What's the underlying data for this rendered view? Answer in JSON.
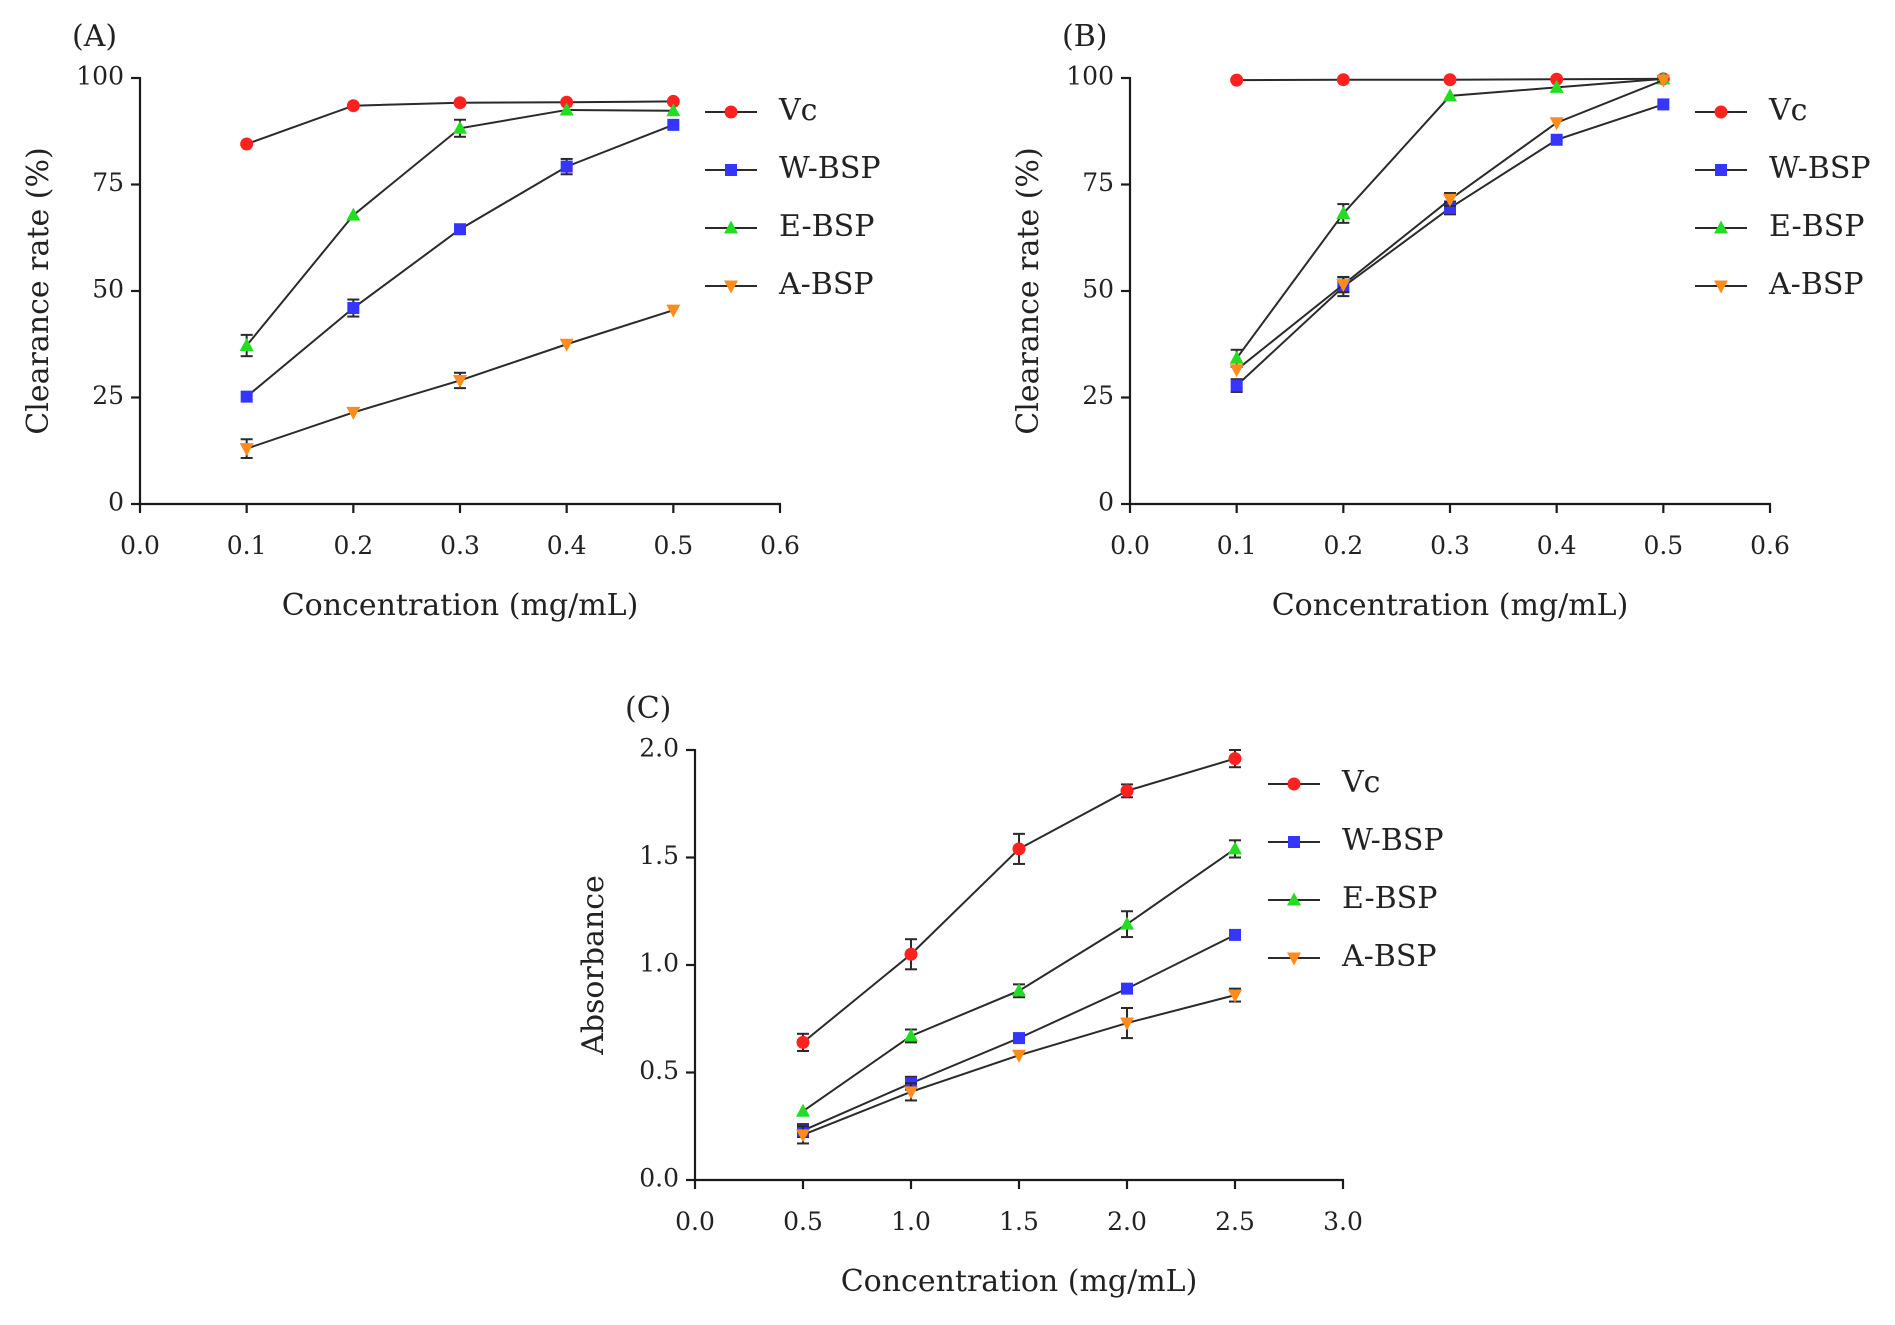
{
  "chart_data": [
    {
      "type": "line",
      "panel_label": "(A)",
      "xlabel": "Concentration (mg/mL)",
      "ylabel": "Clearance rate (%)",
      "xlim": [
        0.0,
        0.6
      ],
      "ylim": [
        0,
        100
      ],
      "xticks": [
        0.0,
        0.1,
        0.2,
        0.3,
        0.4,
        0.5,
        0.6
      ],
      "xtick_labels": [
        "0.0",
        "0.1",
        "0.2",
        "0.3",
        "0.4",
        "0.5",
        "0.6"
      ],
      "yticks": [
        0,
        25,
        50,
        75,
        100
      ],
      "ytick_labels": [
        "0",
        "25",
        "50",
        "75",
        "100"
      ],
      "legend_position": "right",
      "x": [
        0.1,
        0.2,
        0.3,
        0.4,
        0.5
      ],
      "series": [
        {
          "name": "Vc",
          "color": "#ff2020",
          "marker": "circle",
          "values": [
            84.5,
            93.5,
            94.2,
            94.3,
            94.5
          ],
          "errors": [
            0.6,
            0.6,
            0.6,
            0.6,
            0.6
          ]
        },
        {
          "name": "W-BSP",
          "color": "#3535ff",
          "marker": "square",
          "values": [
            25.2,
            46.0,
            64.5,
            79.2,
            89.0
          ],
          "errors": [
            0.6,
            2.0,
            0.8,
            1.8,
            1.0
          ]
        },
        {
          "name": "E-BSP",
          "color": "#22dd22",
          "marker": "triangle-up",
          "values": [
            37.2,
            67.8,
            88.2,
            92.5,
            92.3
          ],
          "errors": [
            2.5,
            0.6,
            2.0,
            0.6,
            0.6
          ]
        },
        {
          "name": "A-BSP",
          "color": "#ff8c1a",
          "marker": "triangle-down",
          "values": [
            13.0,
            21.5,
            29.0,
            37.5,
            45.5
          ],
          "errors": [
            2.2,
            0.6,
            1.8,
            0.6,
            0.6
          ]
        }
      ]
    },
    {
      "type": "line",
      "panel_label": "(B)",
      "xlabel": "Concentration (mg/mL)",
      "ylabel": "Clearance rate (%)",
      "xlim": [
        0.0,
        0.6
      ],
      "ylim": [
        0,
        100
      ],
      "xticks": [
        0.0,
        0.1,
        0.2,
        0.3,
        0.4,
        0.5,
        0.6
      ],
      "xtick_labels": [
        "0.0",
        "0.1",
        "0.2",
        "0.3",
        "0.4",
        "0.5",
        "0.6"
      ],
      "yticks": [
        0,
        25,
        50,
        75,
        100
      ],
      "ytick_labels": [
        "0",
        "25",
        "50",
        "75",
        "100"
      ],
      "legend_position": "right",
      "x": [
        0.1,
        0.2,
        0.3,
        0.4,
        0.5
      ],
      "series": [
        {
          "name": "Vc",
          "color": "#ff2020",
          "marker": "circle",
          "values": [
            99.5,
            99.6,
            99.6,
            99.7,
            99.8
          ],
          "errors": [
            0.5,
            0.5,
            0.5,
            0.5,
            0.5
          ]
        },
        {
          "name": "W-BSP",
          "color": "#3535ff",
          "marker": "square",
          "values": [
            27.8,
            51.0,
            69.5,
            85.5,
            93.8
          ],
          "errors": [
            1.5,
            2.2,
            1.5,
            0.6,
            0.6
          ]
        },
        {
          "name": "E-BSP",
          "color": "#22dd22",
          "marker": "triangle-up",
          "values": [
            34.2,
            68.2,
            95.8,
            97.8,
            99.8
          ],
          "errors": [
            2.0,
            2.2,
            0.6,
            0.6,
            0.6
          ]
        },
        {
          "name": "A-BSP",
          "color": "#ff8c1a",
          "marker": "triangle-down",
          "values": [
            31.5,
            51.5,
            71.5,
            89.5,
            99.5
          ],
          "errors": [
            1.2,
            1.8,
            1.5,
            0.6,
            0.6
          ]
        }
      ]
    },
    {
      "type": "line",
      "panel_label": "(C)",
      "xlabel": "Concentration (mg/mL)",
      "ylabel": "Absorbance",
      "xlim": [
        0.0,
        3.0
      ],
      "ylim": [
        0.0,
        2.0
      ],
      "xticks": [
        0.0,
        0.5,
        1.0,
        1.5,
        2.0,
        2.5,
        3.0
      ],
      "xtick_labels": [
        "0.0",
        "0.5",
        "1.0",
        "1.5",
        "2.0",
        "2.5",
        "3.0"
      ],
      "yticks": [
        0.0,
        0.5,
        1.0,
        1.5,
        2.0
      ],
      "ytick_labels": [
        "0.0",
        "0.5",
        "1.0",
        "1.5",
        "2.0"
      ],
      "legend_position": "right",
      "x": [
        0.5,
        1.0,
        1.5,
        2.0,
        2.5
      ],
      "series": [
        {
          "name": "Vc",
          "color": "#ff2020",
          "marker": "circle",
          "values": [
            0.64,
            1.05,
            1.54,
            1.81,
            1.96
          ],
          "errors": [
            0.04,
            0.07,
            0.07,
            0.03,
            0.04
          ]
        },
        {
          "name": "W-BSP",
          "color": "#3535ff",
          "marker": "square",
          "values": [
            0.23,
            0.45,
            0.66,
            0.89,
            1.14
          ],
          "errors": [
            0.03,
            0.03,
            0.02,
            0.02,
            0.02
          ]
        },
        {
          "name": "E-BSP",
          "color": "#22dd22",
          "marker": "triangle-up",
          "values": [
            0.32,
            0.67,
            0.88,
            1.19,
            1.54
          ],
          "errors": [
            0.02,
            0.03,
            0.03,
            0.06,
            0.04
          ]
        },
        {
          "name": "A-BSP",
          "color": "#ff8c1a",
          "marker": "triangle-down",
          "values": [
            0.21,
            0.41,
            0.58,
            0.73,
            0.86
          ],
          "errors": [
            0.04,
            0.04,
            0.02,
            0.07,
            0.03
          ]
        }
      ]
    }
  ]
}
